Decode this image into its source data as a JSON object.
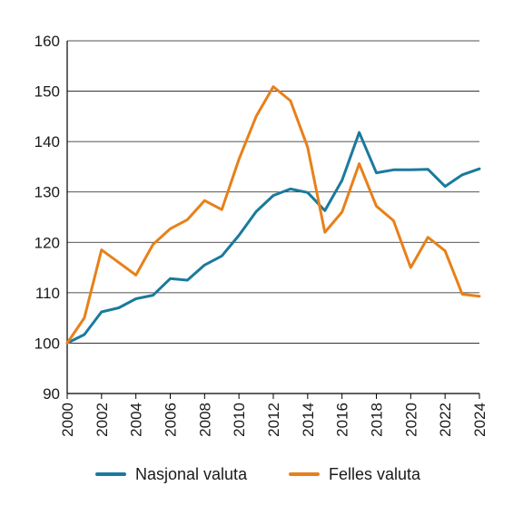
{
  "chart_data": {
    "type": "line",
    "title": "",
    "xlabel": "",
    "ylabel": "",
    "ylim": [
      90,
      160
    ],
    "xlim": [
      2000,
      2024
    ],
    "yticks": [
      90,
      100,
      110,
      120,
      130,
      140,
      150,
      160
    ],
    "xticks": [
      2000,
      2002,
      2004,
      2006,
      2008,
      2010,
      2012,
      2014,
      2016,
      2018,
      2020,
      2022,
      2024
    ],
    "grid": "horizontal",
    "legend_position": "bottom",
    "x": [
      2000,
      2001,
      2002,
      2003,
      2004,
      2005,
      2006,
      2007,
      2008,
      2009,
      2010,
      2011,
      2012,
      2013,
      2014,
      2015,
      2016,
      2017,
      2018,
      2019,
      2020,
      2021,
      2022,
      2023,
      2024
    ],
    "series": [
      {
        "name": "Nasjonal valuta",
        "color": "#1a7a9c",
        "values": [
          100,
          101.7,
          106.2,
          107.0,
          108.8,
          109.5,
          112.8,
          112.5,
          115.5,
          117.3,
          121.4,
          126.1,
          129.3,
          130.6,
          129.9,
          126.3,
          132.3,
          141.8,
          133.8,
          134.4,
          134.4,
          134.5,
          131.1,
          133.4,
          134.6
        ]
      },
      {
        "name": "Felles valuta",
        "color": "#e8801a",
        "values": [
          100,
          105.0,
          118.5,
          116.0,
          113.5,
          119.6,
          122.7,
          124.5,
          128.3,
          126.5,
          136.5,
          145.0,
          150.9,
          148.1,
          138.9,
          122.0,
          126.0,
          135.6,
          127.2,
          124.3,
          115.0,
          121.0,
          118.3,
          109.7,
          109.3
        ]
      }
    ]
  }
}
